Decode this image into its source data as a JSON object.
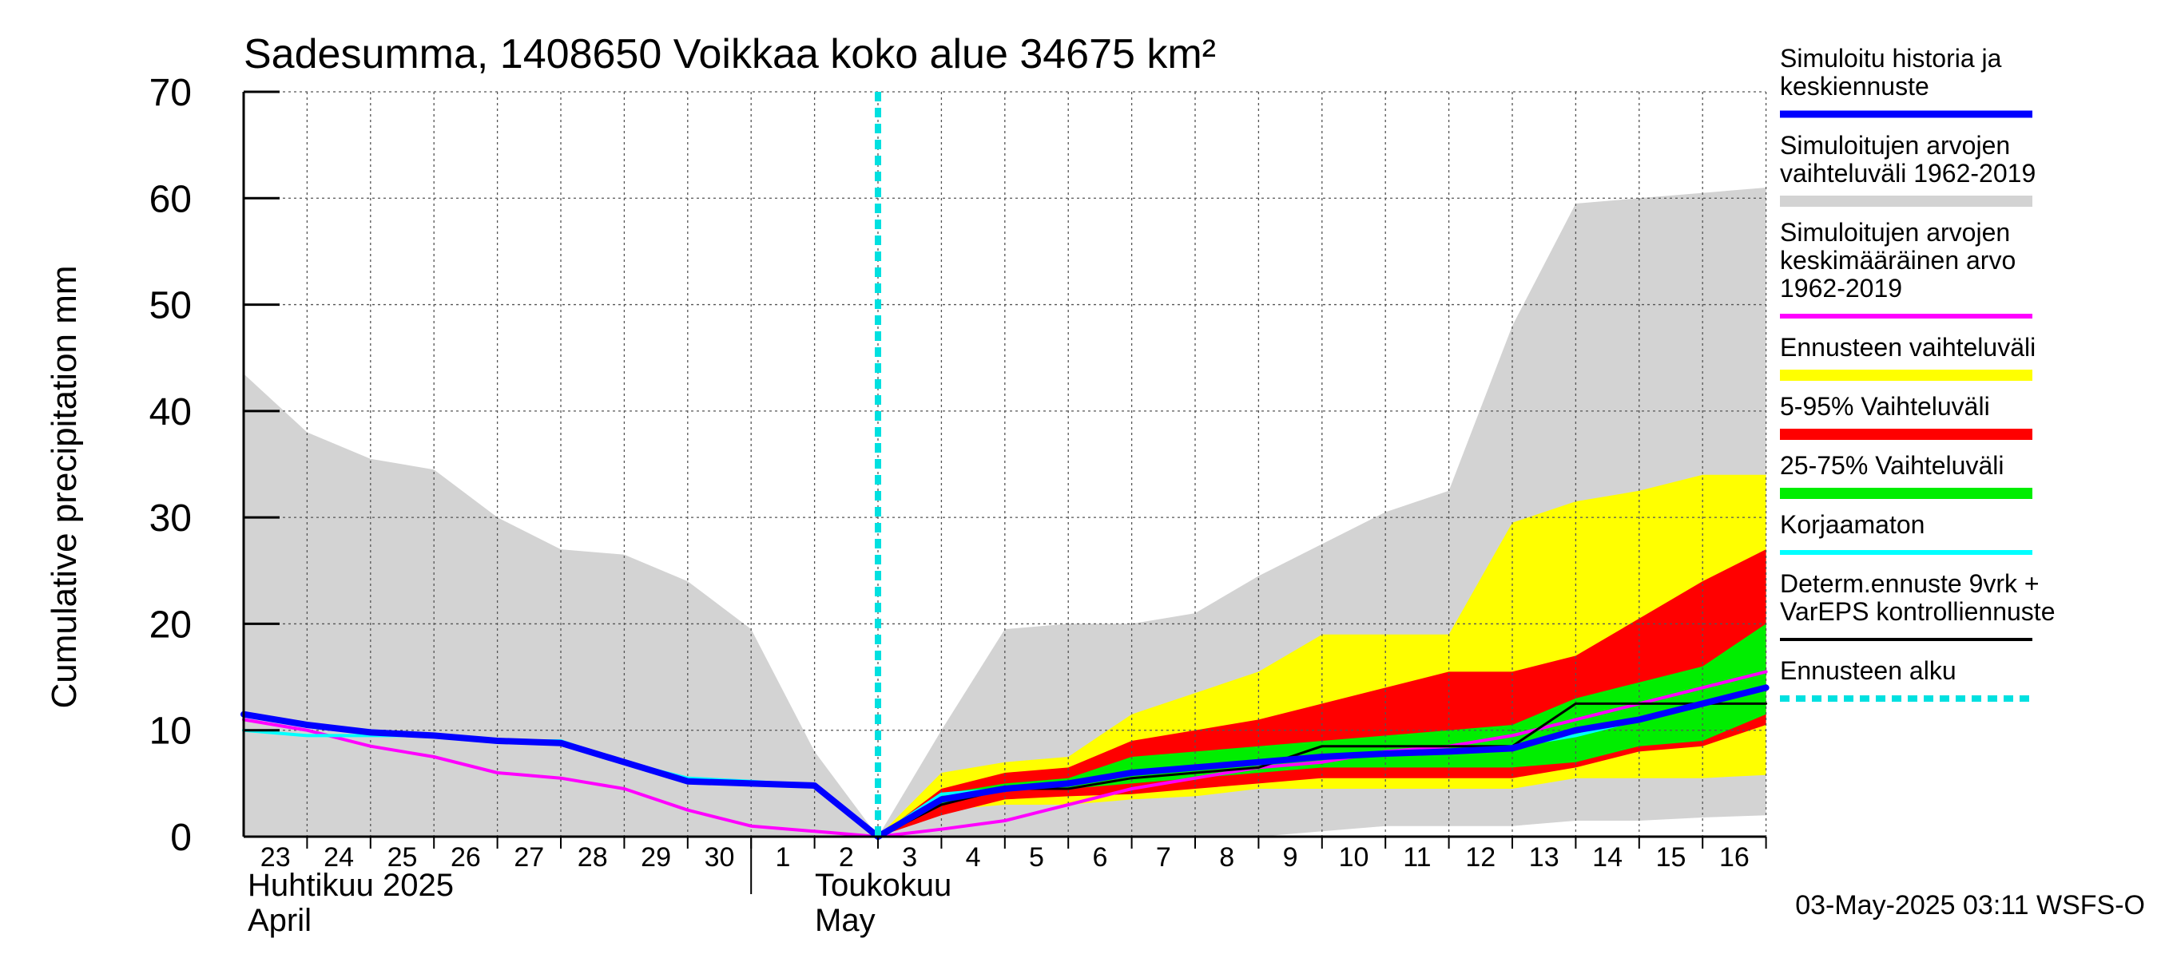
{
  "chart_data": {
    "type": "area",
    "title": "Sadesumma, 1408650 Voikkaa koko alue 34675 km²",
    "ylabel": "Cumulative precipitation   mm",
    "ylim": [
      0,
      70
    ],
    "yticks": [
      "0",
      "10",
      "20",
      "30",
      "40",
      "50",
      "60",
      "70"
    ],
    "x_tick_labels": [
      "23",
      "24",
      "25",
      "26",
      "27",
      "28",
      "29",
      "30",
      "1",
      "2",
      "3",
      "4",
      "5",
      "6",
      "7",
      "8",
      "9",
      "10",
      "11",
      "12",
      "13",
      "14",
      "15",
      "16"
    ],
    "month_labels": [
      {
        "fi": "Huhtikuu  2025",
        "en": "April"
      },
      {
        "fi": "Toukokuu",
        "en": "May"
      }
    ],
    "forecast_start_day": 10,
    "x_days": [
      0,
      1,
      2,
      3,
      4,
      5,
      6,
      7,
      8,
      9,
      10,
      11,
      12,
      13,
      14,
      15,
      16,
      17,
      18,
      19,
      20,
      21,
      22,
      23,
      24
    ],
    "series": [
      {
        "name": "Simuloitujen arvojen vaihteluväli 1962-2019 (max)",
        "values": [
          43.5,
          38,
          35.5,
          34.5,
          30,
          27,
          26.5,
          24,
          19.5,
          8,
          0,
          10,
          19.5,
          20,
          20,
          21,
          24.5,
          27.5,
          30.5,
          32.5,
          48,
          59.5,
          60,
          60.5,
          61
        ]
      },
      {
        "name": "Simuloitujen arvojen vaihteluväli 1962-2019 (min)",
        "values": [
          0,
          0,
          0,
          0,
          0,
          0,
          0,
          0,
          0,
          0,
          0,
          0,
          0,
          0,
          0,
          0,
          0,
          0.5,
          1,
          1,
          1,
          1.5,
          1.5,
          1.8,
          2
        ]
      },
      {
        "name": "Ennusteen vaihteluväli (max)",
        "values": [
          null,
          null,
          null,
          null,
          null,
          null,
          null,
          null,
          null,
          null,
          0,
          6,
          7,
          7.5,
          11.5,
          13.5,
          15.5,
          19,
          19,
          19,
          29.5,
          31.5,
          32.5,
          34,
          34
        ]
      },
      {
        "name": "Ennusteen vaihteluväli (min)",
        "values": [
          null,
          null,
          null,
          null,
          null,
          null,
          null,
          null,
          null,
          null,
          0,
          2.5,
          3,
          3,
          3.5,
          3.8,
          4.5,
          4.5,
          4.5,
          4.5,
          4.5,
          5.5,
          5.5,
          5.5,
          5.8
        ]
      },
      {
        "name": "5-95% Vaihteluväli (max)",
        "values": [
          null,
          null,
          null,
          null,
          null,
          null,
          null,
          null,
          null,
          null,
          0,
          4.5,
          6,
          6.5,
          9,
          10,
          11,
          12.5,
          14,
          15.5,
          15.5,
          17,
          20.5,
          24,
          27
        ]
      },
      {
        "name": "5-95% Vaihteluväli (min)",
        "values": [
          null,
          null,
          null,
          null,
          null,
          null,
          null,
          null,
          null,
          null,
          0,
          2,
          3.5,
          3.8,
          4,
          4.5,
          5,
          5.5,
          5.5,
          5.5,
          5.5,
          6.5,
          8,
          8.5,
          10.5
        ]
      },
      {
        "name": "25-75% Vaihteluväli (max)",
        "values": [
          null,
          null,
          null,
          null,
          null,
          null,
          null,
          null,
          null,
          null,
          0,
          4,
          5,
          5.5,
          7.5,
          8,
          8.5,
          9,
          9.5,
          10,
          10.5,
          13,
          14.5,
          16,
          20
        ]
      },
      {
        "name": "25-75% Vaihteluväli (min)",
        "values": [
          null,
          null,
          null,
          null,
          null,
          null,
          null,
          null,
          null,
          null,
          0,
          3,
          4.5,
          4.5,
          5,
          5.5,
          6,
          6.5,
          6.5,
          6.5,
          6.5,
          7,
          8.5,
          9,
          11.5
        ]
      },
      {
        "name": "Simuloitujen arvojen keskimääräinen arvo 1962-2019",
        "values": [
          11,
          10,
          8.5,
          7.5,
          6,
          5.5,
          4.5,
          2.5,
          1,
          0.5,
          0,
          0.7,
          1.5,
          3,
          4.5,
          5.5,
          6.5,
          7,
          8,
          8.5,
          9.5,
          11,
          12.5,
          14,
          15.5
        ]
      },
      {
        "name": "Korjaamaton",
        "values": [
          10,
          9.5,
          9.5,
          9.5,
          9,
          9,
          7,
          5.5,
          5.2,
          4.8,
          0,
          4,
          4.5,
          5,
          6,
          6.5,
          7,
          7.5,
          7.8,
          8,
          8.5,
          9.5,
          11,
          12.5,
          14
        ]
      },
      {
        "name": "Determ.ennuste 9vrk + VarEPS kontrolliennuste",
        "values": [
          null,
          null,
          null,
          null,
          null,
          null,
          null,
          null,
          null,
          null,
          0,
          3,
          4.5,
          4.5,
          5.5,
          6,
          6.5,
          8.5,
          8.5,
          8.5,
          8.5,
          12.5,
          12.5,
          12.5,
          12.5
        ]
      },
      {
        "name": "Simuloitu historia ja keskiennuste",
        "values": [
          11.5,
          10.5,
          9.8,
          9.5,
          9,
          8.8,
          7,
          5.2,
          5,
          4.8,
          0,
          3.5,
          4.5,
          5,
          6,
          6.5,
          7,
          7.5,
          7.8,
          8,
          8.3,
          10,
          11,
          12.5,
          14
        ]
      }
    ],
    "legend": [
      {
        "label": "Simuloitu historia ja\nkeskiennuste",
        "color": "#0000ff",
        "style": "line"
      },
      {
        "label": "Simuloitujen arvojen\nvaihteluväli 1962-2019",
        "color": "#d3d3d3",
        "style": "band"
      },
      {
        "label": "Simuloitujen arvojen\nkeskimääräinen arvo\n   1962-2019",
        "color": "#ff00ff",
        "style": "line"
      },
      {
        "label": "Ennusteen vaihteluväli",
        "color": "#ffff00",
        "style": "band"
      },
      {
        "label": "5-95% Vaihteluväli",
        "color": "#ff0000",
        "style": "band"
      },
      {
        "label": "25-75% Vaihteluväli",
        "color": "#00ee00",
        "style": "band"
      },
      {
        "label": "Korjaamaton",
        "color": "#00ffff",
        "style": "line"
      },
      {
        "label": "Determ.ennuste 9vrk +\nVarEPS kontrolliennuste",
        "color": "#000000",
        "style": "line"
      },
      {
        "label": "Ennusteen alku",
        "color": "#00e0e0",
        "style": "dashed"
      }
    ],
    "legend_position": "right",
    "footer": "03-May-2025 03:11 WSFS-O"
  }
}
